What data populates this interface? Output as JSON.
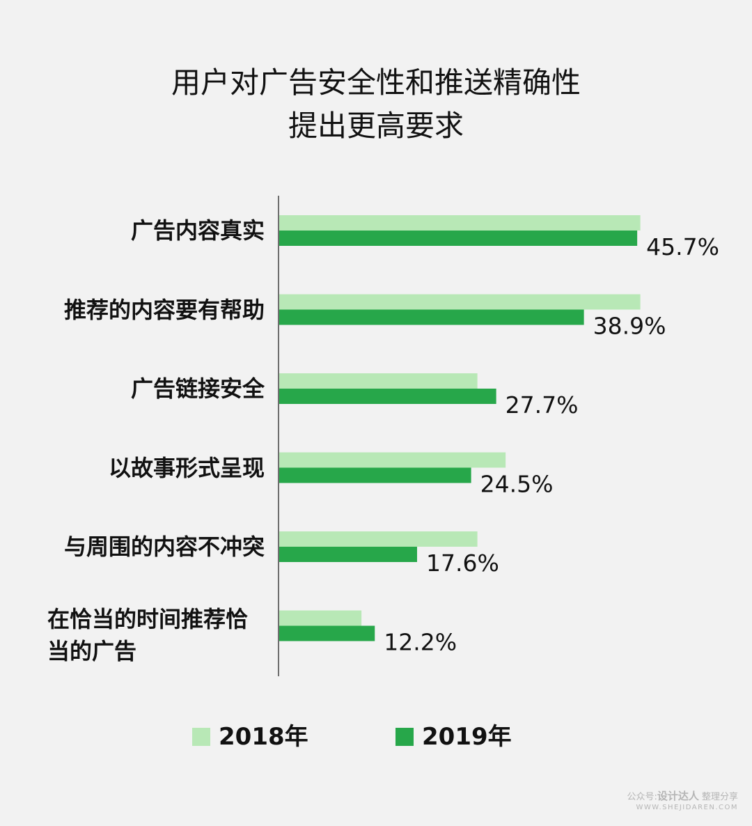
{
  "title_lines": [
    "用户对广告安全性和推送精确性",
    "提出更高要求"
  ],
  "colors": {
    "series2018": "#b8e8b6",
    "series2019": "#27a74a",
    "axis": "#6e6e6e",
    "text": "#111111",
    "background": "#f2f2f2"
  },
  "chart_data": {
    "type": "bar",
    "orientation": "horizontal",
    "title": "用户对广告安全性和推送精确性提出更高要求",
    "categories": [
      "广告内容真实",
      "推荐的内容要有帮助",
      "广告链接安全",
      "以故事形式呈现",
      "与周围的内容不冲突",
      "在恰当的时间推荐恰当的广告"
    ],
    "category_lines": [
      [
        "广告内容真实"
      ],
      [
        "推荐的内容要有帮助"
      ],
      [
        "广告链接安全"
      ],
      [
        "以故事形式呈现"
      ],
      [
        "与周围的内容不冲突"
      ],
      [
        "在恰当的时间推荐恰",
        "当的广告"
      ]
    ],
    "series": [
      {
        "name": "2018年",
        "values": [
          46.1,
          46.1,
          25.3,
          28.9,
          25.3,
          10.5
        ]
      },
      {
        "name": "2019年",
        "values": [
          45.7,
          38.9,
          27.7,
          24.5,
          17.6,
          12.2
        ]
      }
    ],
    "data_labels": [
      "45.7%",
      "38.9%",
      "27.7%",
      "24.5%",
      "17.6%",
      "12.2%"
    ],
    "xlim": [
      0,
      50
    ],
    "legend": "bottom",
    "grid": false
  },
  "watermark": {
    "brand_prefix": "公众号:",
    "brand": "设计达人",
    "suffix": "整理分享",
    "url": "WWW.SHEJIDAREN.COM"
  }
}
